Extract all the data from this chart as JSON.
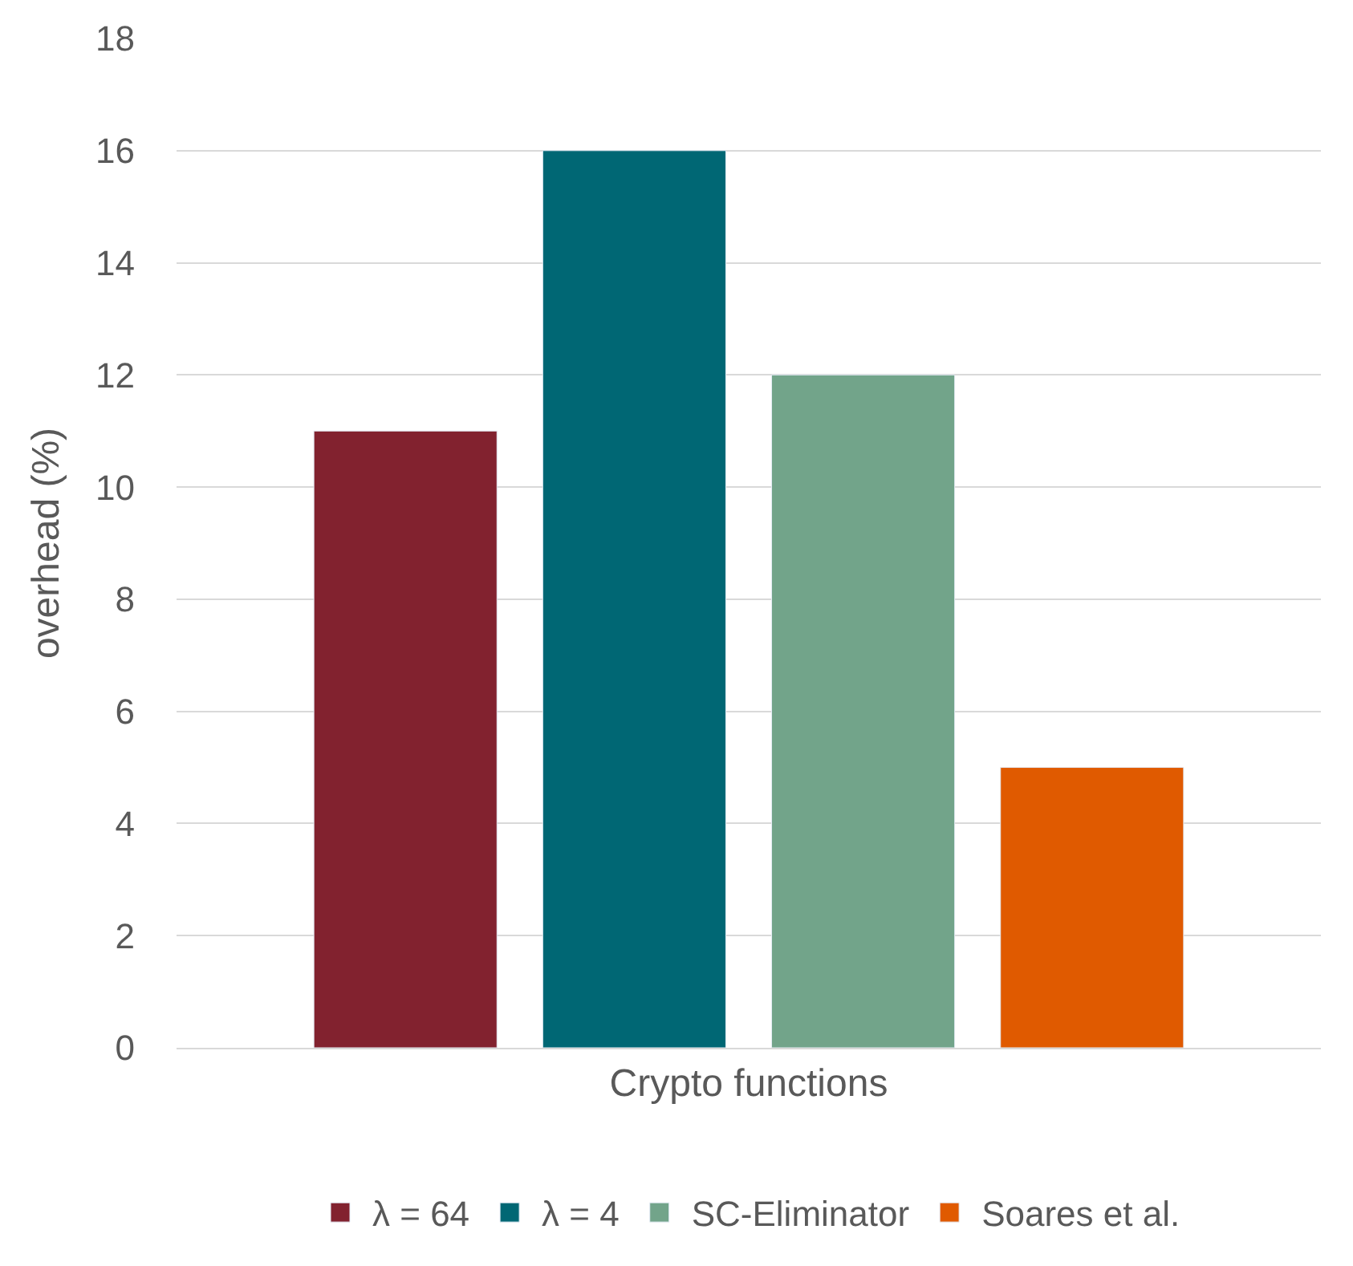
{
  "chart_data": {
    "type": "bar",
    "ylabel": "overhead (%)",
    "categories": [
      "Crypto functions"
    ],
    "series": [
      {
        "name": "λ = 64",
        "color": "#82222f",
        "values": [
          11
        ]
      },
      {
        "name": "λ = 4",
        "color": "#006774",
        "values": [
          16
        ]
      },
      {
        "name": "SC-Eliminator",
        "color": "#72a48a",
        "values": [
          12
        ]
      },
      {
        "name": "Soares et al.",
        "color": "#e05a00",
        "values": [
          5
        ]
      }
    ],
    "ylim": [
      0,
      18
    ],
    "yticks": [
      0,
      2,
      4,
      6,
      8,
      10,
      12,
      14,
      16,
      18
    ],
    "grid": "y",
    "legend": "bottom"
  }
}
